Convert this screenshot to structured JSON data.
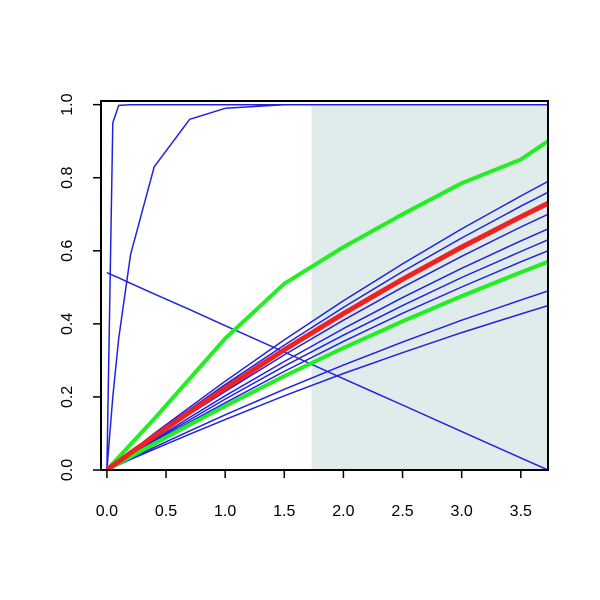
{
  "chart_data": {
    "type": "line",
    "x": [
      0,
      0.05,
      0.1,
      0.2,
      0.4,
      0.7,
      1.0,
      1.5,
      2.0,
      2.5,
      3.0,
      3.5,
      3.73
    ],
    "xlim": [
      -0.05,
      3.73
    ],
    "ylim": [
      0,
      1.01
    ],
    "xticks": [
      {
        "value": 0,
        "label": "0.0"
      },
      {
        "value": 0.5,
        "label": "0.5"
      },
      {
        "value": 1,
        "label": "1.0"
      },
      {
        "value": 1.5,
        "label": "1.5"
      },
      {
        "value": 2,
        "label": "2.0"
      },
      {
        "value": 2.5,
        "label": "2.5"
      },
      {
        "value": 3,
        "label": "3.0"
      },
      {
        "value": 3.5,
        "label": "3.5"
      }
    ],
    "yticks": [
      {
        "value": 0,
        "label": "0.0"
      },
      {
        "value": 0.2,
        "label": "0.2"
      },
      {
        "value": 0.4,
        "label": "0.4"
      },
      {
        "value": 0.6,
        "label": "0.6"
      },
      {
        "value": 0.8,
        "label": "0.8"
      },
      {
        "value": 1,
        "label": "1.0"
      }
    ],
    "shade": {
      "x": [
        1.73,
        3.73
      ],
      "y": [
        0,
        1
      ],
      "color": "#e0ecec"
    },
    "series": [
      {
        "color": "#2222dd",
        "width": 1.5,
        "values": [
          0,
          0.95,
          0.998,
          1,
          1,
          1,
          1,
          1,
          1,
          1,
          1,
          1,
          1
        ]
      },
      {
        "color": "#2222dd",
        "width": 1.5,
        "values": [
          0,
          0.2,
          0.36,
          0.59,
          0.83,
          0.96,
          0.99,
          1,
          1,
          1,
          1,
          1,
          1
        ]
      },
      {
        "color": "#2222dd",
        "width": 1.5,
        "values": [
          0.54,
          0.533,
          0.526,
          0.511,
          0.482,
          0.439,
          0.395,
          0.323,
          0.25,
          0.178,
          0.105,
          0.033,
          0.0
        ]
      },
      {
        "color": "#2222dd",
        "width": 1.5,
        "values": [
          0,
          0.013,
          0.025,
          0.05,
          0.1,
          0.172,
          0.243,
          0.356,
          0.463,
          0.564,
          0.66,
          0.75,
          0.79
        ]
      },
      {
        "color": "#2222dd",
        "width": 1.5,
        "values": [
          0,
          0.012,
          0.024,
          0.048,
          0.096,
          0.166,
          0.234,
          0.342,
          0.445,
          0.543,
          0.635,
          0.722,
          0.76
        ]
      },
      {
        "color": "#2222dd",
        "width": 1.5,
        "values": [
          0,
          0.011,
          0.022,
          0.045,
          0.088,
          0.153,
          0.215,
          0.315,
          0.41,
          0.5,
          0.585,
          0.665,
          0.7
        ]
      },
      {
        "color": "#2222dd",
        "width": 1.5,
        "values": [
          0,
          0.011,
          0.021,
          0.042,
          0.083,
          0.144,
          0.203,
          0.297,
          0.387,
          0.472,
          0.552,
          0.627,
          0.66
        ]
      },
      {
        "color": "#2222dd",
        "width": 1.5,
        "values": [
          0,
          0.01,
          0.02,
          0.04,
          0.08,
          0.137,
          0.194,
          0.284,
          0.369,
          0.45,
          0.527,
          0.598,
          0.63
        ]
      },
      {
        "color": "#2222dd",
        "width": 1.5,
        "values": [
          0,
          0.01,
          0.019,
          0.038,
          0.076,
          0.131,
          0.184,
          0.27,
          0.352,
          0.429,
          0.501,
          0.57,
          0.6
        ]
      },
      {
        "color": "#2222dd",
        "width": 1.5,
        "values": [
          0,
          0.008,
          0.016,
          0.031,
          0.062,
          0.107,
          0.151,
          0.221,
          0.287,
          0.35,
          0.41,
          0.465,
          0.49
        ]
      },
      {
        "color": "#2222dd",
        "width": 1.5,
        "values": [
          0,
          0.007,
          0.014,
          0.029,
          0.057,
          0.098,
          0.138,
          0.203,
          0.264,
          0.321,
          0.376,
          0.427,
          0.45
        ]
      },
      {
        "color": "#22ee22",
        "width": 4,
        "values": [
          0,
          0.009,
          0.018,
          0.036,
          0.072,
          0.124,
          0.175,
          0.257,
          0.334,
          0.407,
          0.476,
          0.541,
          0.57
        ]
      },
      {
        "color": "#22ee22",
        "width": 4,
        "values": [
          0,
          0.018,
          0.035,
          0.07,
          0.14,
          0.25,
          0.36,
          0.51,
          0.61,
          0.7,
          0.785,
          0.85,
          0.9
        ]
      },
      {
        "color": "#ee2222",
        "width": 5,
        "values": [
          0,
          0.012,
          0.023,
          0.047,
          0.092,
          0.159,
          0.224,
          0.329,
          0.428,
          0.522,
          0.61,
          0.693,
          0.73
        ]
      }
    ]
  }
}
